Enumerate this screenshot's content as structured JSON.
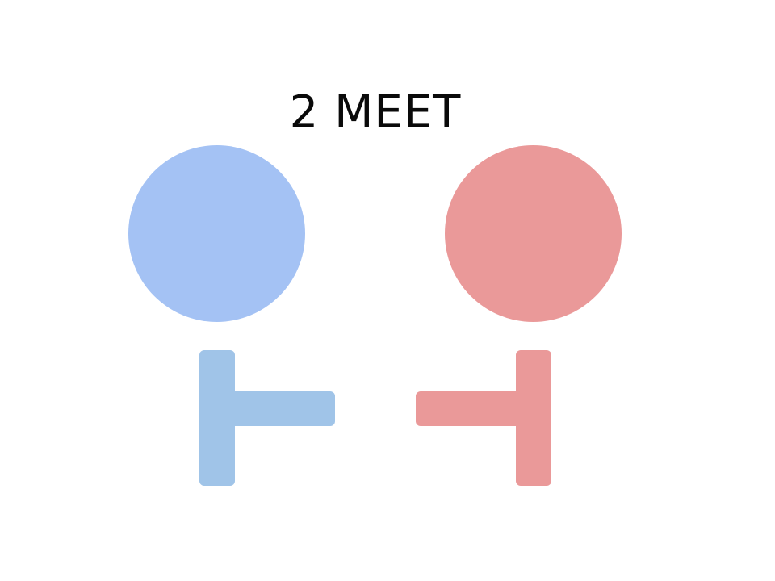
{
  "title": "2 MEET",
  "figures": {
    "left": {
      "head_color": "#a4c2f4",
      "body_color": "#a0c4e8"
    },
    "right": {
      "head_color": "#ea9999",
      "body_color": "#ea9999"
    }
  }
}
